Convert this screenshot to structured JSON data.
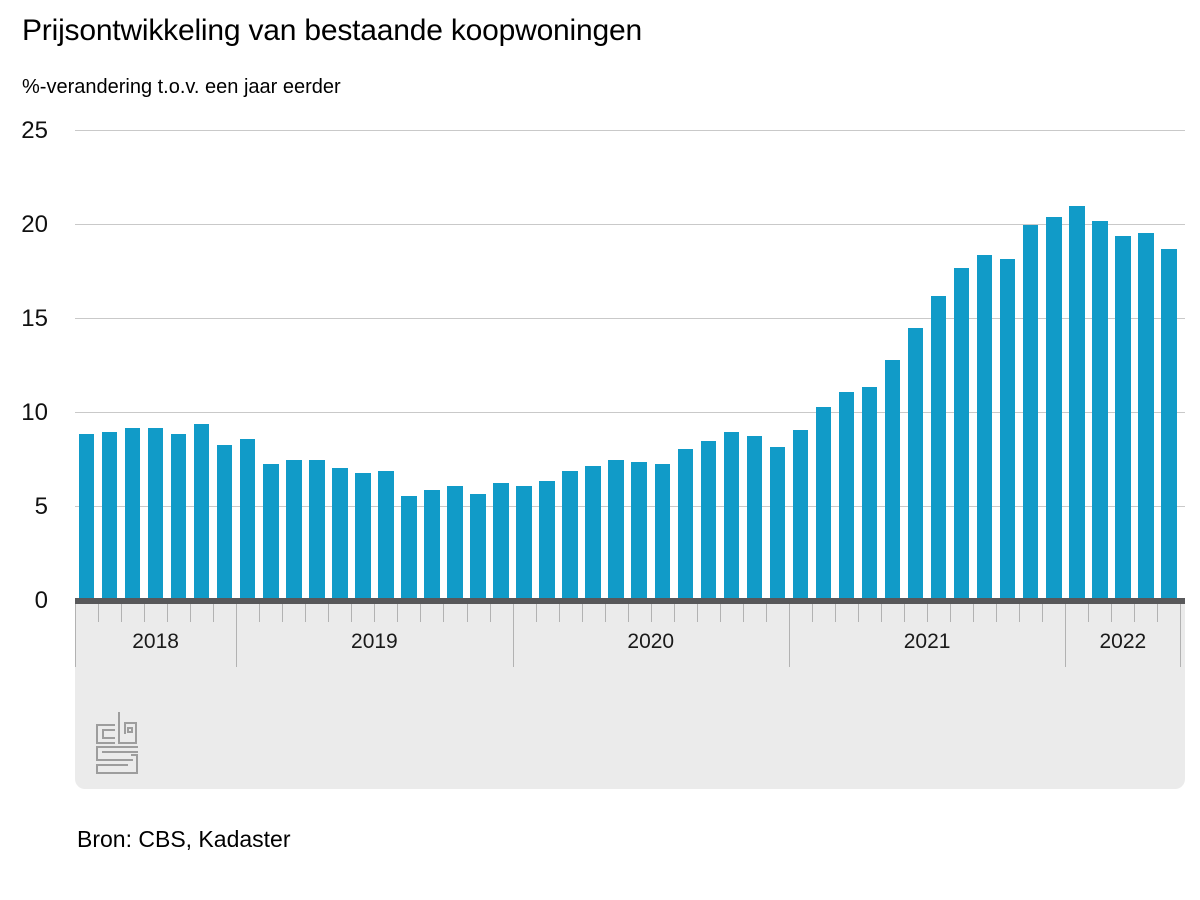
{
  "title": "Prijsontwikkeling van bestaande koopwoningen",
  "subtitle": "%-verandering t.o.v. een jaar eerder",
  "source": "Bron: CBS, Kadaster",
  "logo_name": "cbs-logo",
  "colors": {
    "bar": "#119bc8",
    "gridline": "#c9c9c9",
    "zero_axis": "#58585a",
    "band": "#ebebeb",
    "tick": "#b2b2b2",
    "year_label": "#1a1a1a",
    "logo": "#9d9d9d",
    "text": "#000000"
  },
  "chart_data": {
    "type": "bar",
    "title": "Prijsontwikkeling van bestaande koopwoningen",
    "ylabel": "%-verandering t.o.v. een jaar eerder",
    "xlabel": "",
    "ylim": [
      0,
      25
    ],
    "y_ticks": [
      0,
      5,
      10,
      15,
      20,
      25
    ],
    "grid": true,
    "legend": false,
    "unit": "%",
    "period_note": "monthly bars, Jun 2018 - May 2022",
    "groups": [
      {
        "year": "2018",
        "values": [
          8.9,
          9.0,
          9.2,
          9.2,
          8.9,
          9.4,
          8.3
        ]
      },
      {
        "year": "2019",
        "values": [
          8.6,
          7.3,
          7.5,
          7.5,
          7.1,
          6.8,
          6.9,
          5.6,
          5.9,
          6.1,
          5.7,
          6.3
        ]
      },
      {
        "year": "2020",
        "values": [
          6.1,
          6.4,
          6.9,
          7.2,
          7.5,
          7.4,
          7.3,
          8.1,
          8.5,
          9.0,
          8.8,
          8.2
        ]
      },
      {
        "year": "2021",
        "values": [
          9.1,
          10.3,
          11.1,
          11.4,
          12.8,
          14.5,
          16.2,
          17.7,
          18.4,
          18.2,
          20.0,
          20.4
        ]
      },
      {
        "year": "2022",
        "values": [
          21.0,
          20.2,
          19.4,
          19.6,
          18.7
        ]
      }
    ]
  }
}
